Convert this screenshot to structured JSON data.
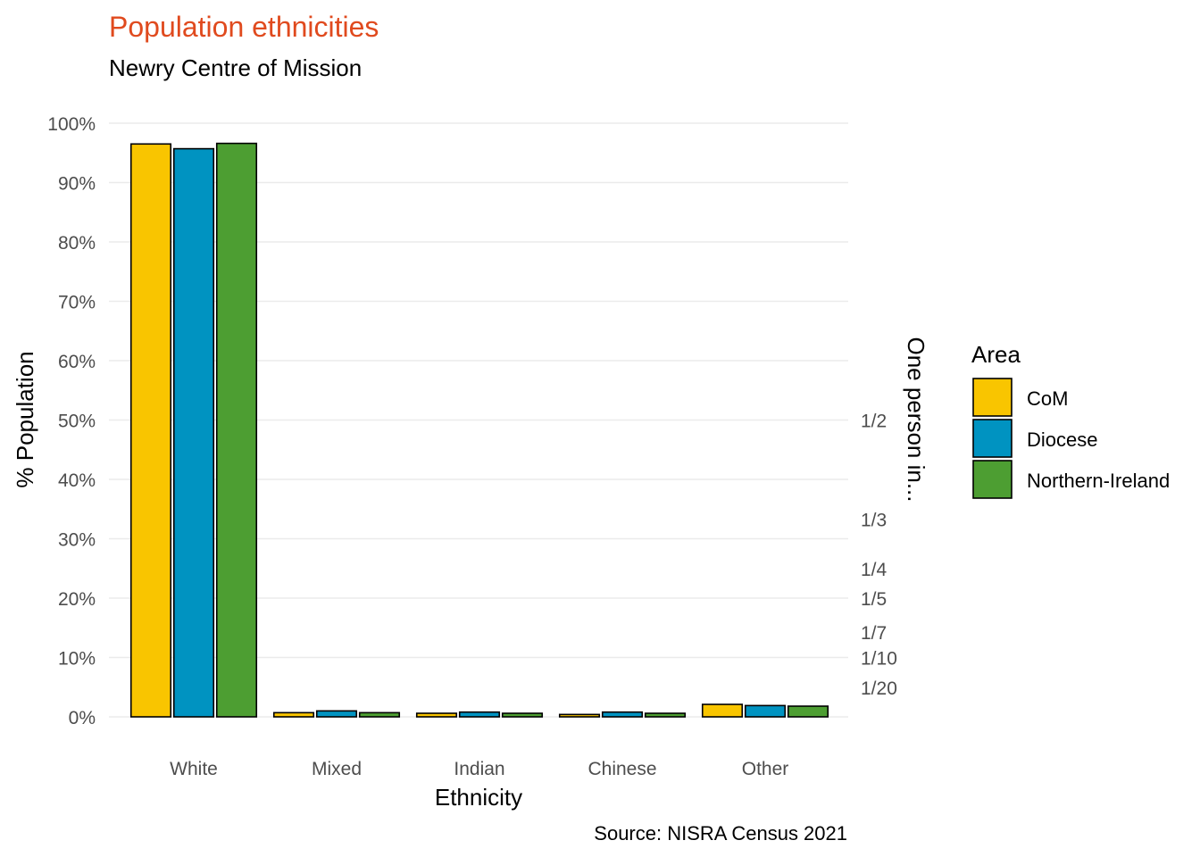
{
  "chart_data": {
    "type": "bar",
    "title": "Population ethnicities",
    "subtitle": "Newry Centre of Mission",
    "xlabel": "Ethnicity",
    "ylabel": "% Population",
    "y2label": "One person in...",
    "caption": "Source: NISRA Census 2021",
    "legend_title": "Area",
    "legend_position": "right",
    "grid": true,
    "ylim": [
      0,
      100
    ],
    "categories": [
      "White",
      "Mixed",
      "Indian",
      "Chinese",
      "Other"
    ],
    "series": [
      {
        "name": "CoM",
        "color": "#F9C500",
        "values": [
          96.5,
          0.7,
          0.6,
          0.4,
          2.1
        ]
      },
      {
        "name": "Diocese",
        "color": "#0093C1",
        "values": [
          95.7,
          1.0,
          0.8,
          0.8,
          1.9
        ]
      },
      {
        "name": "Northern-Ireland",
        "color": "#4D9E32",
        "values": [
          96.6,
          0.7,
          0.6,
          0.6,
          1.8
        ]
      }
    ],
    "yticks": [
      0,
      10,
      20,
      30,
      40,
      50,
      60,
      70,
      80,
      90,
      100
    ],
    "ytick_labels": [
      "0%",
      "10%",
      "20%",
      "30%",
      "40%",
      "50%",
      "60%",
      "70%",
      "80%",
      "90%",
      "100%"
    ],
    "y2ticks": [
      50,
      33.333,
      25,
      20,
      14.286,
      10,
      5
    ],
    "y2tick_labels": [
      "1/2",
      "1/3",
      "1/4",
      "1/5",
      "1/7",
      "1/10",
      "1/20"
    ],
    "title_color": "#E04A1E"
  }
}
